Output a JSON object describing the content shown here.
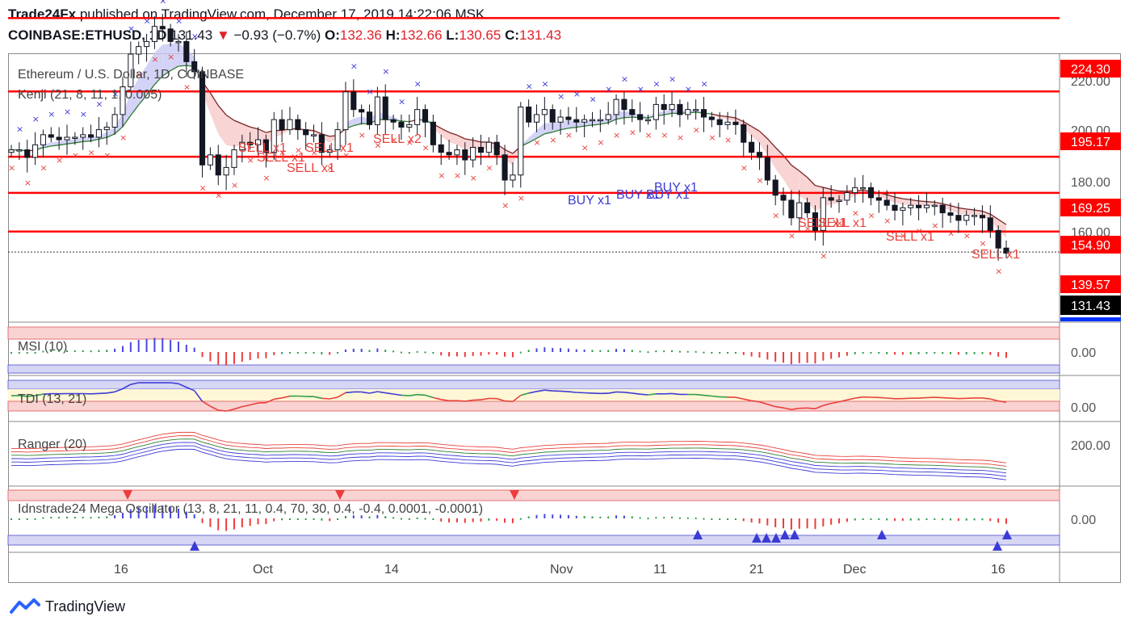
{
  "header": {
    "publisher": "Trade24Fx",
    "published_text": " published on TradingView.com, December 17, 2019 14:22:06 MSK",
    "symbol": "COINBASE:ETHUSD, 1D",
    "last": "131.43",
    "change": "−0.93 (−0.7%)",
    "o_label": "O:",
    "o_value": "132.36",
    "h_label": "H:",
    "h_value": "132.66",
    "l_label": "L:",
    "l_value": "130.65",
    "c_label": "C:",
    "c_value": "131.43"
  },
  "legend": {
    "main_title": "Ethereum / U.S. Dollar, 1D, COINBASE",
    "kenji": "Kenji (21, 8, 11, 1, 0.005)",
    "msi": "MSI (10)",
    "tdi": "TDI (13, 21)",
    "ranger": "Ranger (20)",
    "mega": "Idnstrade24 Mega Oscillator (13, 8, 21, 11, 0.4, 70, 30, 0.4, -0.4, 0.0001, -0.0001)"
  },
  "footer": {
    "brand": "TradingView"
  },
  "colors": {
    "up": "#ffffff",
    "down": "#131722",
    "level": "#ff0000",
    "buy": "#3b3bd6",
    "sell": "#e8413c",
    "cloud_up": "#c8c8f5",
    "cloud_dn": "#f7c9c9"
  },
  "chart_data": [
    {
      "type": "candlestick",
      "title": "Ethereum / U.S. Dollar, 1D, COINBASE",
      "x_tick_labels": [
        "16",
        "Oct",
        "14",
        "Nov",
        "11",
        "21",
        "Dec",
        "16"
      ],
      "y_tick_labels": [
        "220.00",
        "200.00",
        "180.00",
        "160.00"
      ],
      "ylim": [
        120,
        228
      ],
      "last_price": 131.43,
      "levels": [
        224.3,
        195.17,
        169.25,
        154.9,
        139.57
      ],
      "level_labels": [
        "224.30",
        "195.17",
        "169.25",
        "154.90",
        "139.57"
      ],
      "last_label": "131.43",
      "close": [
        172,
        172,
        169,
        174,
        178,
        177,
        176,
        177,
        177,
        178,
        177,
        180,
        181,
        186,
        197,
        210,
        213,
        215,
        221,
        220,
        215,
        215,
        207,
        203,
        166,
        170,
        162,
        165,
        172,
        175,
        174,
        176,
        171,
        184,
        180,
        184,
        180,
        178,
        178,
        171,
        172,
        180,
        195,
        188,
        187,
        182,
        193,
        184,
        183,
        181,
        182,
        188,
        183,
        174,
        171,
        170,
        172,
        168,
        173,
        171,
        175,
        170,
        160,
        162,
        189,
        183,
        186,
        188,
        183,
        185,
        184,
        183,
        184,
        184,
        184,
        186,
        192,
        188,
        186,
        184,
        184,
        190,
        188,
        190,
        186,
        188,
        188,
        185,
        184,
        182,
        183,
        182,
        175,
        171,
        169,
        160,
        154,
        152,
        145,
        151,
        147,
        140,
        153,
        152,
        152,
        155,
        157,
        157,
        153,
        152,
        150,
        148,
        149,
        150,
        149,
        150,
        150,
        147,
        146,
        144,
        146,
        146,
        145,
        140,
        133,
        131
      ],
      "series": [
        {
          "name": "Kenji",
          "values": []
        }
      ]
    },
    {
      "type": "bar",
      "title": "MSI (10)",
      "y_tick_labels": [
        "0.00"
      ]
    },
    {
      "type": "line",
      "title": "TDI (13, 21)",
      "y_tick_labels": [
        "0.00"
      ]
    },
    {
      "type": "line",
      "title": "Ranger (20)",
      "y_tick_labels": [
        "200.00"
      ]
    },
    {
      "type": "bar",
      "title": "Idnstrade24 Mega Oscillator (13, 8, 21, 11, 0.4, 70, 30, 0.4, -0.4, 0.0001, -0.0001)",
      "y_tick_labels": [
        "0.00"
      ]
    }
  ],
  "signals": {
    "sell_labels": [
      "SELL x1",
      "SELL x1",
      "SELL x1",
      "SELL x1",
      "SELL x2",
      "SELL x1",
      "SELL x1",
      "SELL x1",
      "SELL x1"
    ],
    "buy_labels": [
      "BUY x1",
      "BUY x1",
      "BUY x1",
      "BUY x1"
    ]
  }
}
